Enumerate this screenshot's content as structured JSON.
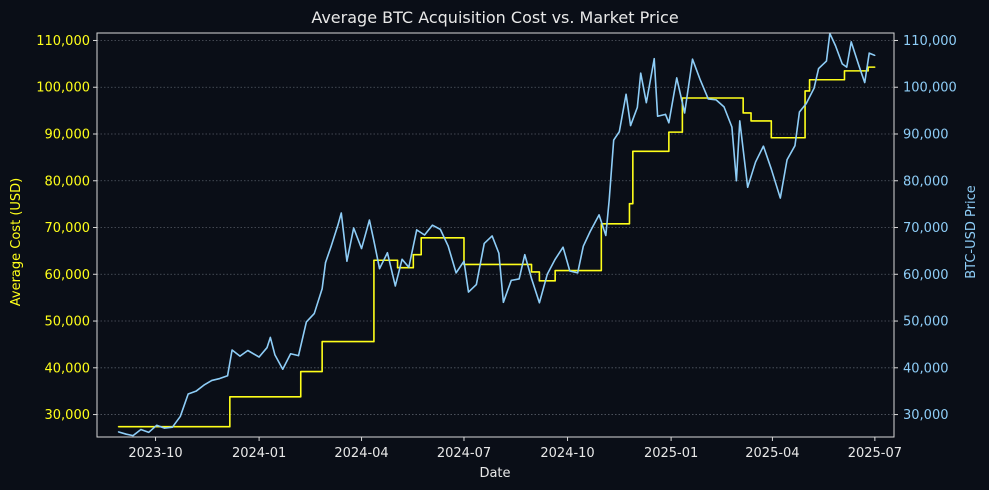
{
  "colors": {
    "background": "#0a0e17",
    "plot_background": "#0a0e17",
    "cost_line": "#ffff1a",
    "price_line": "#8ecdf7",
    "axis_text": "#e8e8e8",
    "grid": "#555b66",
    "spine": "#d8d8d8"
  },
  "chart_data": {
    "type": "line",
    "title": "Average BTC Acquisition Cost vs. Market Price",
    "xlabel": "Date",
    "ylabel_left": "Average Cost (USD)",
    "ylabel_right": "BTC-USD Price",
    "x_ticks": [
      "2023-10",
      "2024-01",
      "2024-04",
      "2024-07",
      "2024-10",
      "2025-01",
      "2025-04",
      "2025-07"
    ],
    "y_ticks": [
      "30,000",
      "40,000",
      "50,000",
      "60,000",
      "70,000",
      "80,000",
      "90,000",
      "100,000",
      "110,000"
    ],
    "y_tick_values": [
      30000,
      40000,
      50000,
      60000,
      70000,
      80000,
      90000,
      100000,
      110000
    ],
    "x_range": [
      "2023-08-10",
      "2025-07-18"
    ],
    "ylim": [
      25200,
      111600
    ],
    "grid": "horizontal dotted",
    "series": [
      {
        "name": "Average Cost (USD)",
        "axis": "left",
        "style": "step",
        "color": "#ffff1a",
        "points": [
          [
            "2023-08-29",
            27400
          ],
          [
            "2023-12-06",
            27400
          ],
          [
            "2023-12-06",
            33800
          ],
          [
            "2024-02-07",
            33800
          ],
          [
            "2024-02-07",
            39200
          ],
          [
            "2024-02-26",
            39200
          ],
          [
            "2024-02-26",
            45600
          ],
          [
            "2024-04-12",
            45600
          ],
          [
            "2024-04-12",
            63000
          ],
          [
            "2024-05-03",
            63000
          ],
          [
            "2024-05-03",
            61400
          ],
          [
            "2024-05-17",
            61400
          ],
          [
            "2024-05-17",
            64200
          ],
          [
            "2024-05-24",
            64200
          ],
          [
            "2024-05-24",
            67800
          ],
          [
            "2024-07-01",
            67800
          ],
          [
            "2024-07-01",
            62100
          ],
          [
            "2024-08-30",
            62100
          ],
          [
            "2024-08-30",
            60500
          ],
          [
            "2024-09-06",
            60500
          ],
          [
            "2024-09-06",
            58600
          ],
          [
            "2024-09-20",
            58600
          ],
          [
            "2024-09-20",
            60800
          ],
          [
            "2024-10-31",
            60800
          ],
          [
            "2024-10-31",
            70800
          ],
          [
            "2024-11-25",
            70800
          ],
          [
            "2024-11-25",
            75100
          ],
          [
            "2024-11-28",
            75100
          ],
          [
            "2024-11-28",
            86300
          ],
          [
            "2024-12-30",
            86300
          ],
          [
            "2024-12-30",
            90400
          ],
          [
            "2025-01-11",
            90400
          ],
          [
            "2025-01-11",
            97700
          ],
          [
            "2025-03-06",
            97700
          ],
          [
            "2025-03-06",
            94500
          ],
          [
            "2025-03-13",
            94500
          ],
          [
            "2025-03-13",
            92800
          ],
          [
            "2025-03-31",
            92800
          ],
          [
            "2025-03-31",
            89200
          ],
          [
            "2025-04-30",
            89200
          ],
          [
            "2025-04-30",
            99200
          ],
          [
            "2025-05-04",
            99200
          ],
          [
            "2025-05-04",
            101600
          ],
          [
            "2025-06-04",
            101600
          ],
          [
            "2025-06-04",
            103500
          ],
          [
            "2025-06-25",
            103500
          ],
          [
            "2025-06-25",
            104300
          ],
          [
            "2025-07-01",
            104300
          ]
        ]
      },
      {
        "name": "BTC-USD Price",
        "axis": "right",
        "style": "line",
        "color": "#8ecdf7",
        "points": [
          [
            "2023-08-29",
            26300
          ],
          [
            "2023-09-05",
            25800
          ],
          [
            "2023-09-11",
            25500
          ],
          [
            "2023-09-18",
            26800
          ],
          [
            "2023-09-25",
            26200
          ],
          [
            "2023-10-02",
            27700
          ],
          [
            "2023-10-09",
            27100
          ],
          [
            "2023-10-16",
            27300
          ],
          [
            "2023-10-23",
            29600
          ],
          [
            "2023-10-30",
            34400
          ],
          [
            "2023-11-06",
            35000
          ],
          [
            "2023-11-13",
            36300
          ],
          [
            "2023-11-20",
            37300
          ],
          [
            "2023-11-27",
            37700
          ],
          [
            "2023-12-04",
            38300
          ],
          [
            "2023-12-08",
            43800
          ],
          [
            "2023-12-15",
            42500
          ],
          [
            "2023-12-22",
            43700
          ],
          [
            "2024-01-01",
            42300
          ],
          [
            "2024-01-08",
            44300
          ],
          [
            "2024-01-11",
            46500
          ],
          [
            "2024-01-15",
            42800
          ],
          [
            "2024-01-22",
            39700
          ],
          [
            "2024-01-29",
            43000
          ],
          [
            "2024-02-05",
            42600
          ],
          [
            "2024-02-12",
            49800
          ],
          [
            "2024-02-19",
            51600
          ],
          [
            "2024-02-26",
            56900
          ],
          [
            "2024-02-29",
            62500
          ],
          [
            "2024-03-05",
            66000
          ],
          [
            "2024-03-11",
            70500
          ],
          [
            "2024-03-14",
            73100
          ],
          [
            "2024-03-19",
            62800
          ],
          [
            "2024-03-25",
            69900
          ],
          [
            "2024-04-01",
            65500
          ],
          [
            "2024-04-08",
            71600
          ],
          [
            "2024-04-12",
            67100
          ],
          [
            "2024-04-17",
            61200
          ],
          [
            "2024-04-24",
            64600
          ],
          [
            "2024-05-01",
            57500
          ],
          [
            "2024-05-07",
            63200
          ],
          [
            "2024-05-13",
            61500
          ],
          [
            "2024-05-20",
            69500
          ],
          [
            "2024-05-27",
            68400
          ],
          [
            "2024-06-03",
            70500
          ],
          [
            "2024-06-10",
            69600
          ],
          [
            "2024-06-17",
            66000
          ],
          [
            "2024-06-24",
            60300
          ],
          [
            "2024-07-01",
            62800
          ],
          [
            "2024-07-05",
            56200
          ],
          [
            "2024-07-12",
            57800
          ],
          [
            "2024-07-19",
            66600
          ],
          [
            "2024-07-26",
            68200
          ],
          [
            "2024-08-01",
            64500
          ],
          [
            "2024-08-05",
            54000
          ],
          [
            "2024-08-12",
            58700
          ],
          [
            "2024-08-19",
            59000
          ],
          [
            "2024-08-24",
            64200
          ],
          [
            "2024-08-30",
            59100
          ],
          [
            "2024-09-06",
            53900
          ],
          [
            "2024-09-13",
            60000
          ],
          [
            "2024-09-20",
            63200
          ],
          [
            "2024-09-27",
            65800
          ],
          [
            "2024-10-03",
            60700
          ],
          [
            "2024-10-10",
            60300
          ],
          [
            "2024-10-15",
            66000
          ],
          [
            "2024-10-21",
            69100
          ],
          [
            "2024-10-29",
            72700
          ],
          [
            "2024-11-04",
            68300
          ],
          [
            "2024-11-07",
            75900
          ],
          [
            "2024-11-11",
            88700
          ],
          [
            "2024-11-16",
            90500
          ],
          [
            "2024-11-22",
            98500
          ],
          [
            "2024-11-26",
            91800
          ],
          [
            "2024-12-02",
            95700
          ],
          [
            "2024-12-05",
            103000
          ],
          [
            "2024-12-10",
            96700
          ],
          [
            "2024-12-17",
            106100
          ],
          [
            "2024-12-20",
            93800
          ],
          [
            "2024-12-27",
            94200
          ],
          [
            "2024-12-30",
            92400
          ],
          [
            "2025-01-06",
            102000
          ],
          [
            "2025-01-13",
            94500
          ],
          [
            "2025-01-20",
            106000
          ],
          [
            "2025-01-27",
            101500
          ],
          [
            "2025-02-03",
            97500
          ],
          [
            "2025-02-10",
            97300
          ],
          [
            "2025-02-17",
            95800
          ],
          [
            "2025-02-24",
            91500
          ],
          [
            "2025-02-28",
            80000
          ],
          [
            "2025-03-03",
            92800
          ],
          [
            "2025-03-10",
            78600
          ],
          [
            "2025-03-17",
            84000
          ],
          [
            "2025-03-24",
            87400
          ],
          [
            "2025-03-31",
            82500
          ],
          [
            "2025-04-08",
            76300
          ],
          [
            "2025-04-14",
            84500
          ],
          [
            "2025-04-21",
            87500
          ],
          [
            "2025-04-25",
            94700
          ],
          [
            "2025-05-01",
            96500
          ],
          [
            "2025-05-08",
            99800
          ],
          [
            "2025-05-12",
            104000
          ],
          [
            "2025-05-19",
            105600
          ],
          [
            "2025-05-22",
            111500
          ],
          [
            "2025-05-27",
            108900
          ],
          [
            "2025-06-02",
            105000
          ],
          [
            "2025-06-06",
            104300
          ],
          [
            "2025-06-10",
            109700
          ],
          [
            "2025-06-17",
            104500
          ],
          [
            "2025-06-22",
            101000
          ],
          [
            "2025-06-26",
            107300
          ],
          [
            "2025-07-01",
            106800
          ]
        ]
      }
    ]
  }
}
